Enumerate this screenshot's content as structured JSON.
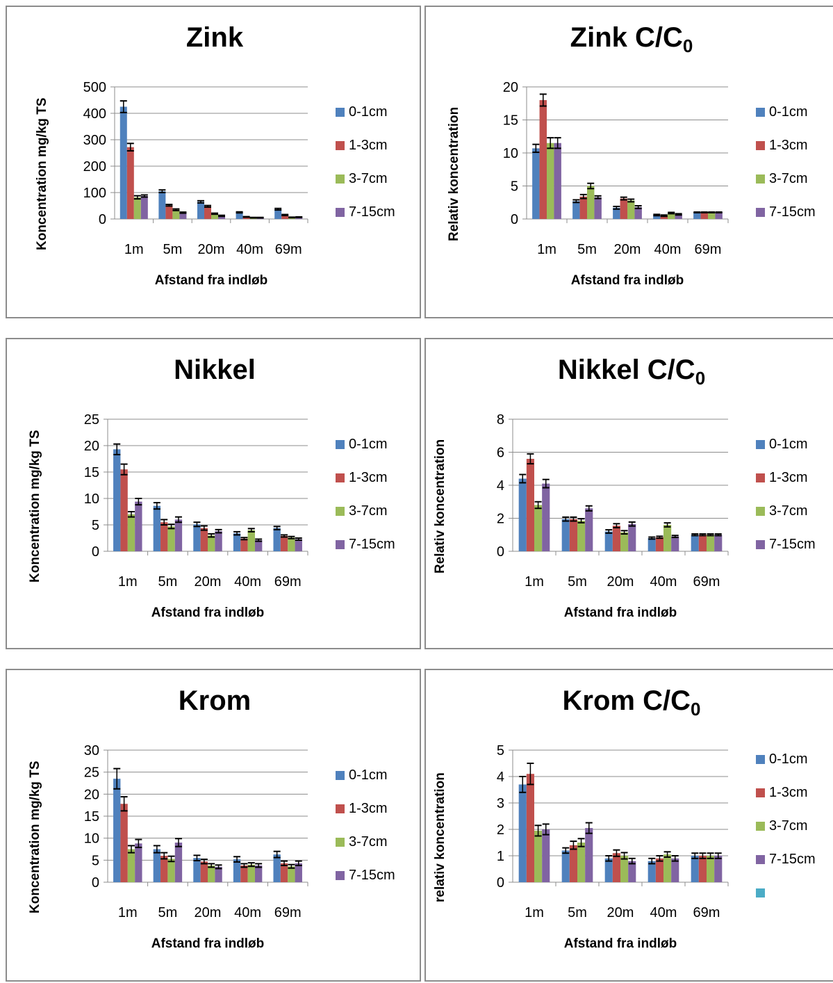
{
  "legend_labels": [
    "0-1cm",
    "1-3cm",
    "3-7cm",
    "7-15cm"
  ],
  "series_colors": [
    "#4f81bd",
    "#c0504d",
    "#9bbb59",
    "#8064a2"
  ],
  "extra_legend_color": "#4bacc6",
  "chart_data": [
    {
      "type": "bar",
      "title": "Zink",
      "title_sub": "",
      "xlabel": "Afstand fra indløb",
      "ylabel": "Koncentration mg/kg TS",
      "categories": [
        "1m",
        "5m",
        "20m",
        "40m",
        "69m"
      ],
      "ylim": [
        0,
        500
      ],
      "yticks": [
        0,
        100,
        200,
        300,
        400,
        500
      ],
      "grid": true,
      "legend": "right",
      "series": [
        {
          "name": "0-1cm",
          "values": [
            425,
            105,
            65,
            25,
            37
          ],
          "errors": [
            22,
            5,
            4,
            2,
            3
          ]
        },
        {
          "name": "1-3cm",
          "values": [
            272,
            52,
            48,
            8,
            15
          ],
          "errors": [
            14,
            3,
            3,
            1,
            2
          ]
        },
        {
          "name": "3-7cm",
          "values": [
            82,
            35,
            20,
            5,
            6
          ],
          "errors": [
            6,
            3,
            2,
            1,
            1
          ]
        },
        {
          "name": "7-15cm",
          "values": [
            87,
            24,
            12,
            5,
            7
          ],
          "errors": [
            4,
            2,
            2,
            1,
            1
          ]
        }
      ]
    },
    {
      "type": "bar",
      "title": "Zink C/C",
      "title_sub": "0",
      "xlabel": "Afstand fra indløb",
      "ylabel": "Relativ koncentration",
      "categories": [
        "1m",
        "5m",
        "20m",
        "40m",
        "69m"
      ],
      "ylim": [
        0,
        20
      ],
      "yticks": [
        0,
        5,
        10,
        15,
        20
      ],
      "grid": true,
      "legend": "right",
      "series": [
        {
          "name": "0-1cm",
          "values": [
            10.7,
            2.7,
            1.7,
            0.6,
            1
          ],
          "errors": [
            0.6,
            0.2,
            0.2,
            0.1,
            0.05
          ]
        },
        {
          "name": "1-3cm",
          "values": [
            18,
            3.4,
            3.1,
            0.5,
            1
          ],
          "errors": [
            0.9,
            0.3,
            0.2,
            0.1,
            0.05
          ]
        },
        {
          "name": "3-7cm",
          "values": [
            11.5,
            5.0,
            2.8,
            0.9,
            1
          ],
          "errors": [
            0.8,
            0.4,
            0.2,
            0.1,
            0.05
          ]
        },
        {
          "name": "7-15cm",
          "values": [
            11.5,
            3.3,
            1.8,
            0.7,
            1
          ],
          "errors": [
            0.8,
            0.2,
            0.2,
            0.1,
            0.05
          ]
        }
      ]
    },
    {
      "type": "bar",
      "title": "Nikkel",
      "title_sub": "",
      "xlabel": "Afstand fra indløb",
      "ylabel": "Koncentration mg/kg TS",
      "categories": [
        "1m",
        "5m",
        "20m",
        "40m",
        "69m"
      ],
      "ylim": [
        0,
        25
      ],
      "yticks": [
        0,
        5,
        10,
        15,
        20,
        25
      ],
      "grid": true,
      "legend": "right",
      "series": [
        {
          "name": "0-1cm",
          "values": [
            19.3,
            8.6,
            5.1,
            3.4,
            4.4
          ],
          "errors": [
            1.0,
            0.6,
            0.4,
            0.3,
            0.3
          ]
        },
        {
          "name": "1-3cm",
          "values": [
            15.5,
            5.5,
            4.4,
            2.4,
            2.9
          ],
          "errors": [
            1.0,
            0.5,
            0.4,
            0.2,
            0.2
          ]
        },
        {
          "name": "3-7cm",
          "values": [
            7.0,
            4.7,
            3.0,
            4.0,
            2.6
          ],
          "errors": [
            0.5,
            0.4,
            0.3,
            0.3,
            0.2
          ]
        },
        {
          "name": "7-15cm",
          "values": [
            9.4,
            6.0,
            3.8,
            2.1,
            2.3
          ],
          "errors": [
            0.6,
            0.5,
            0.3,
            0.2,
            0.2
          ]
        }
      ]
    },
    {
      "type": "bar",
      "title": "Nikkel C/C",
      "title_sub": "0",
      "xlabel": "Afstand fra indløb",
      "ylabel": "Relativ koncentration",
      "categories": [
        "1m",
        "5m",
        "20m",
        "40m",
        "69m"
      ],
      "ylim": [
        0,
        8
      ],
      "yticks": [
        0,
        2,
        4,
        6,
        8
      ],
      "grid": true,
      "legend": "right",
      "series": [
        {
          "name": "0-1cm",
          "values": [
            4.4,
            1.95,
            1.2,
            0.8,
            1
          ],
          "errors": [
            0.25,
            0.12,
            0.1,
            0.06,
            0.05
          ]
        },
        {
          "name": "1-3cm",
          "values": [
            5.6,
            1.95,
            1.55,
            0.85,
            1
          ],
          "errors": [
            0.3,
            0.12,
            0.12,
            0.06,
            0.05
          ]
        },
        {
          "name": "3-7cm",
          "values": [
            2.8,
            1.85,
            1.15,
            1.6,
            1
          ],
          "errors": [
            0.2,
            0.12,
            0.1,
            0.12,
            0.05
          ]
        },
        {
          "name": "7-15cm",
          "values": [
            4.1,
            2.6,
            1.65,
            0.9,
            1
          ],
          "errors": [
            0.25,
            0.15,
            0.12,
            0.06,
            0.05
          ]
        }
      ]
    },
    {
      "type": "bar",
      "title": "Krom",
      "title_sub": "",
      "xlabel": "Afstand fra indløb",
      "ylabel": "Koncentration mg/kg TS",
      "categories": [
        "1m",
        "5m",
        "20m",
        "40m",
        "69m"
      ],
      "ylim": [
        0,
        30
      ],
      "yticks": [
        0,
        5,
        10,
        15,
        20,
        25,
        30
      ],
      "grid": true,
      "legend": "right",
      "series": [
        {
          "name": "0-1cm",
          "values": [
            23.5,
            7.5,
            5.5,
            5.2,
            6.3
          ],
          "errors": [
            2.3,
            0.8,
            0.6,
            0.6,
            0.7
          ]
        },
        {
          "name": "1-3cm",
          "values": [
            17.8,
            6.0,
            4.7,
            3.8,
            4.3
          ],
          "errors": [
            1.6,
            0.7,
            0.5,
            0.4,
            0.5
          ]
        },
        {
          "name": "3-7cm",
          "values": [
            7.5,
            5.3,
            3.8,
            4.0,
            3.6
          ],
          "errors": [
            0.8,
            0.6,
            0.4,
            0.4,
            0.4
          ]
        },
        {
          "name": "7-15cm",
          "values": [
            8.8,
            9.0,
            3.5,
            3.8,
            4.3
          ],
          "errors": [
            0.9,
            0.9,
            0.4,
            0.4,
            0.5
          ]
        }
      ]
    },
    {
      "type": "bar",
      "title": "Krom C/C",
      "title_sub": "0",
      "xlabel": "Afstand fra indløb",
      "ylabel": "relativ koncentration",
      "categories": [
        "1m",
        "5m",
        "20m",
        "40m",
        "69m"
      ],
      "ylim": [
        0,
        5
      ],
      "yticks": [
        0,
        1,
        2,
        3,
        4,
        5
      ],
      "grid": true,
      "legend": "right",
      "series": [
        {
          "name": "0-1cm",
          "values": [
            3.7,
            1.2,
            0.9,
            0.8,
            1
          ],
          "errors": [
            0.3,
            0.1,
            0.1,
            0.1,
            0.1
          ]
        },
        {
          "name": "1-3cm",
          "values": [
            4.1,
            1.4,
            1.1,
            0.9,
            1
          ],
          "errors": [
            0.4,
            0.15,
            0.12,
            0.1,
            0.1
          ]
        },
        {
          "name": "3-7cm",
          "values": [
            1.95,
            1.5,
            1.0,
            1.05,
            1
          ],
          "errors": [
            0.2,
            0.15,
            0.12,
            0.1,
            0.1
          ]
        },
        {
          "name": "7-15cm",
          "values": [
            2.0,
            2.05,
            0.8,
            0.9,
            1
          ],
          "errors": [
            0.2,
            0.2,
            0.1,
            0.1,
            0.1
          ]
        }
      ]
    }
  ]
}
